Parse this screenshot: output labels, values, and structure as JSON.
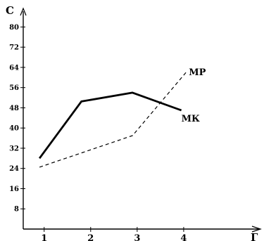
{
  "chart_data": {
    "type": "line",
    "ylabel": "C",
    "xlabel": "Г",
    "xlim": [
      0.55,
      5.5
    ],
    "ylim": [
      0,
      84
    ],
    "x_ticks": [
      1,
      2,
      3,
      4
    ],
    "y_ticks": [
      8,
      16,
      24,
      32,
      40,
      48,
      56,
      64,
      72,
      80
    ],
    "grid": false,
    "legend": "none",
    "series": [
      {
        "name": "МК",
        "style": "solid",
        "color": "#000000",
        "points": [
          {
            "x": 0.9,
            "y": 28
          },
          {
            "x": 1.8,
            "y": 50.5
          },
          {
            "x": 2.9,
            "y": 54
          },
          {
            "x": 3.95,
            "y": 47
          }
        ]
      },
      {
        "name": "МР",
        "style": "dashed",
        "color": "#000000",
        "points": [
          {
            "x": 0.9,
            "y": 24.5
          },
          {
            "x": 2.9,
            "y": 37
          },
          {
            "x": 4.05,
            "y": 62
          }
        ]
      }
    ]
  }
}
